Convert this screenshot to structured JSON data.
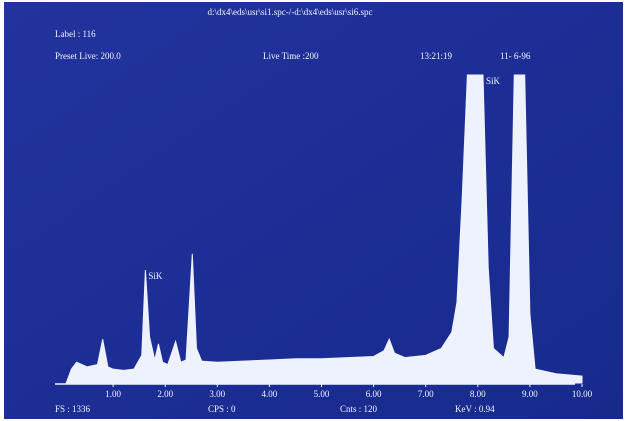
{
  "chart_data": {
    "type": "area",
    "title": "d:\\dx4\\eds\\usr\\si1.spc-/-d:\\dx4\\eds\\usr\\si6.spc",
    "label_line": "Label : 116",
    "preset_live": "Preset Live: 200.0",
    "live_time": "Live Time :200",
    "time": "13:21:19",
    "date": "11- 6-96",
    "annotations": [
      {
        "text": "SiK",
        "x": 1.62,
        "y": 490
      },
      {
        "text": "SiK",
        "x": 8.1,
        "y": 1336
      }
    ],
    "status": [
      "FS : 1336",
      "CPS : 0",
      "Cnts : 120",
      "KeV : 0.94"
    ],
    "x": [
      0.1,
      0.2,
      0.3,
      0.5,
      0.7,
      0.8,
      0.9,
      1.0,
      1.2,
      1.4,
      1.55,
      1.62,
      1.7,
      1.8,
      1.87,
      1.95,
      2.05,
      2.2,
      2.3,
      2.4,
      2.52,
      2.6,
      2.7,
      3.0,
      3.5,
      4.0,
      4.5,
      5.0,
      5.5,
      6.0,
      6.2,
      6.3,
      6.4,
      6.6,
      7.0,
      7.3,
      7.5,
      7.6,
      7.7,
      7.8,
      8.1,
      8.2,
      8.3,
      8.5,
      8.6,
      8.7,
      8.9,
      9.0,
      9.1,
      9.5,
      10.0
    ],
    "values": [
      0,
      60,
      90,
      70,
      80,
      190,
      70,
      60,
      55,
      60,
      120,
      490,
      200,
      100,
      170,
      90,
      80,
      180,
      90,
      100,
      560,
      150,
      95,
      90,
      95,
      100,
      105,
      105,
      110,
      115,
      140,
      190,
      130,
      110,
      120,
      150,
      220,
      350,
      800,
      1336,
      1336,
      500,
      150,
      110,
      200,
      1336,
      1336,
      300,
      60,
      40,
      30
    ],
    "color": "#eef2ff",
    "xlim": [
      0,
      10
    ],
    "ylim": [
      0,
      1336
    ],
    "xticks": [
      {
        "value": 1,
        "label": "1.00"
      },
      {
        "value": 2,
        "label": "2.00"
      },
      {
        "value": 3,
        "label": "3.00"
      },
      {
        "value": 4,
        "label": "4.00"
      },
      {
        "value": 5,
        "label": "5.00"
      },
      {
        "value": 6,
        "label": "6.00"
      },
      {
        "value": 7,
        "label": "7.00"
      },
      {
        "value": 8,
        "label": "8.00"
      },
      {
        "value": 9,
        "label": "9.00"
      },
      {
        "value": 10,
        "label": "10.00"
      }
    ]
  }
}
